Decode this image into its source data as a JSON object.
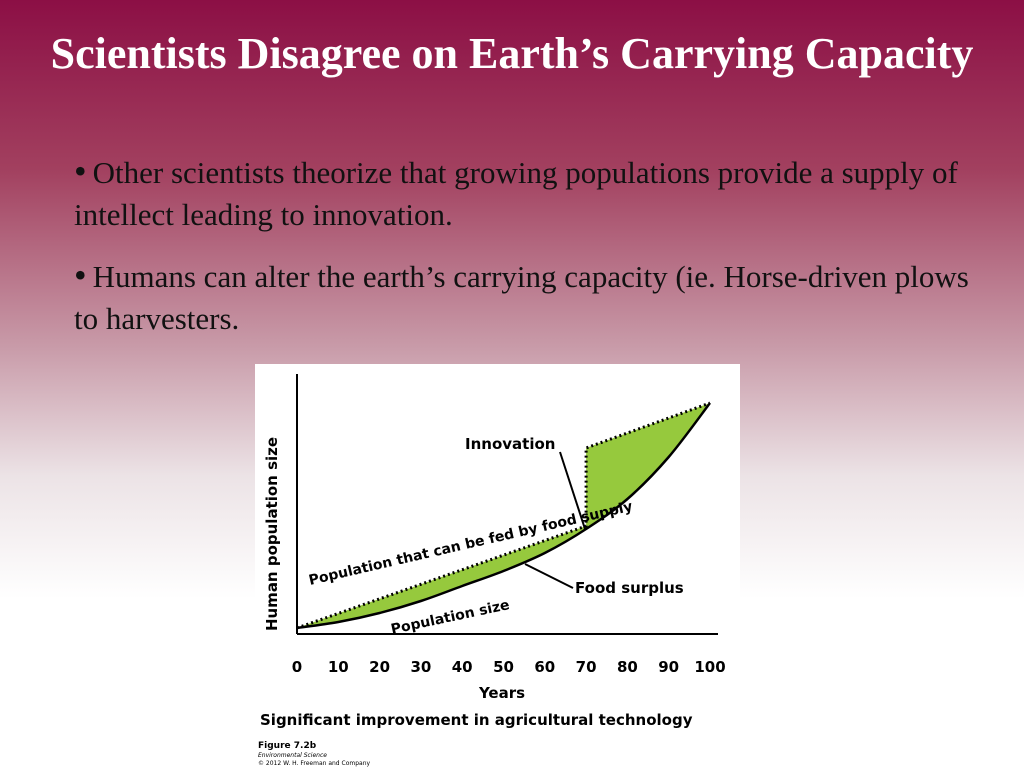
{
  "title": "Scientists Disagree on Earth’s Carrying Capacity",
  "bullets": [
    {
      "marker": "•",
      "text": "Other scientists theorize that growing populations provide a supply of intellect leading to innovation."
    },
    {
      "marker": "•",
      "text": "Humans can alter the earth’s carrying capacity (ie. Horse-driven plows to harvesters."
    }
  ],
  "colors": {
    "fill": "#96c93d",
    "line": "#000000"
  },
  "chart_data": {
    "type": "area",
    "x": [
      0,
      10,
      20,
      30,
      40,
      50,
      60,
      70,
      80,
      90,
      100
    ],
    "ylabel": "Human population size",
    "xlabel": "Years",
    "xlim": [
      0,
      100
    ],
    "xticks": [
      0,
      10,
      20,
      30,
      40,
      50,
      60,
      70,
      80,
      90,
      100
    ],
    "series": [
      {
        "name": "Population that can be fed by food supply",
        "label_line2": "",
        "style": "dotted",
        "x": [
          0,
          70,
          70,
          100
        ],
        "y": [
          0,
          34,
          60,
          75
        ]
      },
      {
        "name": "Population size",
        "style": "solid",
        "x": [
          0,
          10,
          20,
          30,
          40,
          50,
          60,
          70,
          80,
          90,
          100
        ],
        "y": [
          0,
          2,
          5,
          9,
          14,
          19,
          25,
          33,
          43,
          57,
          75
        ]
      }
    ],
    "ylim": [
      0,
      80
    ],
    "annotations": [
      "Innovation",
      "Food surplus"
    ],
    "caption": "Significant improvement in agricultural technology",
    "figure_label": "Figure 7.2b",
    "source_line1": "Environmental Science",
    "source_line2": "© 2012 W. H. Freeman and Company"
  }
}
